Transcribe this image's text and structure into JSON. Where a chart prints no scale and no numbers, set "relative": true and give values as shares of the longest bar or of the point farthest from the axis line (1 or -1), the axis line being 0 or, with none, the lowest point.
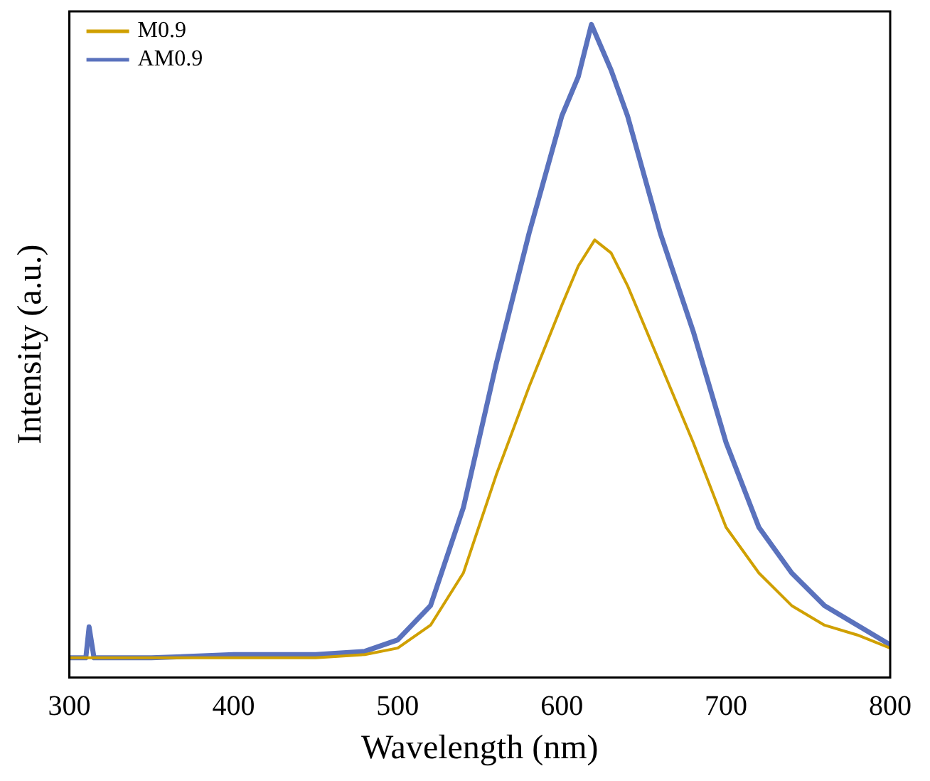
{
  "chart_data": {
    "type": "line",
    "xlabel": "Wavelength (nm)",
    "ylabel": "Intensity (a.u.)",
    "relative": true,
    "xlim": [
      300,
      800
    ],
    "xticks": [
      300,
      400,
      500,
      600,
      700,
      800
    ],
    "legend": "top left",
    "marker": "none",
    "line_style": "solid",
    "grid": false,
    "series": [
      {
        "name": "M0.9",
        "color": "#d0a000",
        "x": [
          300,
          350,
          400,
          450,
          480,
          500,
          520,
          540,
          560,
          580,
          600,
          610,
          620,
          630,
          640,
          660,
          680,
          700,
          720,
          740,
          760,
          780,
          800
        ],
        "values": [
          0.03,
          0.03,
          0.03,
          0.03,
          0.035,
          0.045,
          0.08,
          0.16,
          0.31,
          0.445,
          0.57,
          0.63,
          0.67,
          0.65,
          0.6,
          0.48,
          0.36,
          0.23,
          0.16,
          0.11,
          0.08,
          0.065,
          0.045
        ]
      },
      {
        "name": "AM0.9",
        "color": "#5a72bd",
        "x": [
          300,
          310,
          312,
          315,
          350,
          400,
          450,
          480,
          500,
          520,
          540,
          560,
          580,
          600,
          610,
          618,
          630,
          640,
          660,
          680,
          700,
          720,
          740,
          760,
          780,
          800
        ],
        "values": [
          0.03,
          0.03,
          0.0775,
          0.03,
          0.03,
          0.035,
          0.035,
          0.04,
          0.0575,
          0.11,
          0.26,
          0.48,
          0.68,
          0.86,
          0.92,
          1.0,
          0.93,
          0.86,
          0.68,
          0.53,
          0.36,
          0.23,
          0.16,
          0.11,
          0.08,
          0.05
        ]
      }
    ]
  }
}
